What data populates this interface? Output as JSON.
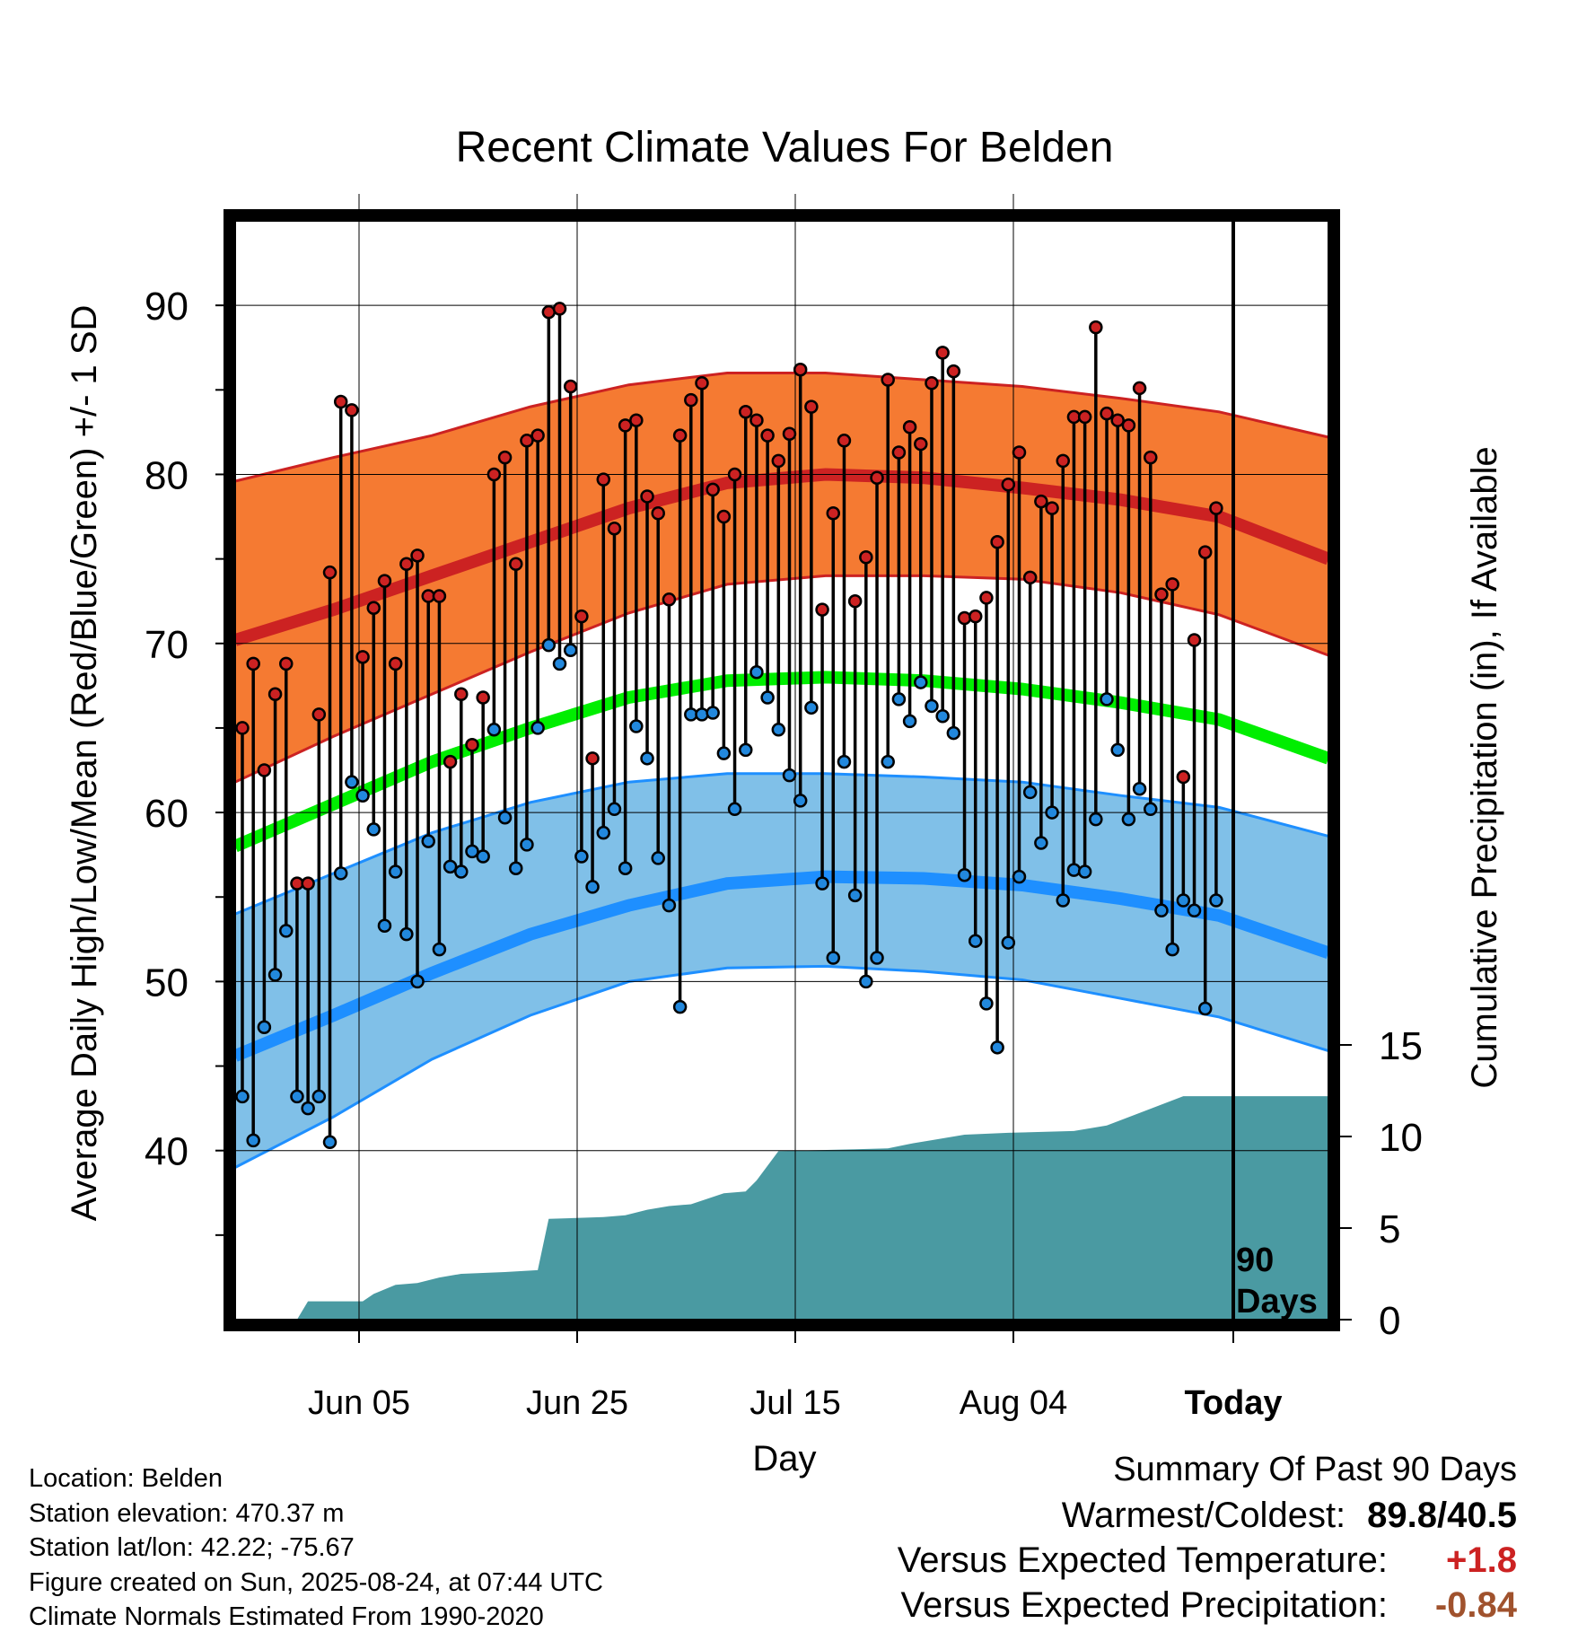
{
  "title": "Recent Climate Values For Belden",
  "labels": {
    "y_left": "Average Daily High/Low/Mean (Red/Blue/Green) +/- 1 SD",
    "y_right": "Cumulative Precipitation (in), If Available",
    "x": "Day",
    "period_note_line1": "90",
    "period_note_line2": "Days"
  },
  "colors": {
    "high_band": "#f57a32",
    "high_line": "#cc2222",
    "mean_line": "#00ee00",
    "low_band": "#80c0e8",
    "low_line": "#1e8fff",
    "precip_fill": "#4a9aa2",
    "high_dot": "#cc2222",
    "low_dot": "#2288dd",
    "temp_delta": "#cc2222",
    "precip_delta": "#a0522d"
  },
  "chart_data": {
    "type": "line",
    "x_ticks": [
      "Jun 05",
      "Jun 25",
      "Jul 15",
      "Aug 04",
      "Today"
    ],
    "y_left_ticks": [
      40,
      50,
      60,
      70,
      80,
      90
    ],
    "y_right_ticks": [
      0,
      5,
      10,
      15
    ],
    "y_left_range": [
      30,
      95
    ],
    "y_right_range": [
      0,
      60
    ],
    "days": 90,
    "daily_high": [
      65.0,
      68.8,
      62.5,
      67.0,
      68.8,
      55.8,
      55.8,
      65.8,
      74.2,
      84.3,
      83.8,
      69.2,
      72.1,
      73.7,
      68.8,
      74.7,
      75.2,
      72.8,
      72.8,
      63.0,
      67.0,
      64.0,
      66.8,
      80.0,
      81.0,
      74.7,
      82.0,
      82.3,
      89.6,
      89.8,
      85.2,
      71.6,
      63.2,
      79.7,
      76.8,
      82.9,
      83.2,
      78.7,
      77.7,
      72.6,
      82.3,
      84.4,
      85.4,
      79.1,
      77.5,
      80.0,
      83.7,
      83.2,
      82.3,
      80.8,
      82.4,
      86.2,
      84.0,
      72.0,
      77.7,
      82.0,
      72.5,
      75.1,
      79.8,
      85.6,
      81.3,
      82.8,
      81.8,
      85.4,
      87.2,
      86.1,
      71.5,
      71.6,
      72.7,
      76.0,
      79.4,
      81.3,
      73.9,
      78.4,
      78.0,
      80.8,
      83.4,
      83.4,
      88.7,
      83.6,
      83.2,
      82.9,
      85.1,
      81.0,
      72.9,
      73.5,
      62.1,
      70.2,
      75.4,
      78.0
    ],
    "daily_low": [
      43.2,
      40.6,
      47.3,
      50.4,
      53.0,
      43.2,
      42.5,
      43.2,
      40.5,
      56.4,
      61.8,
      61.0,
      59.0,
      53.3,
      56.5,
      52.8,
      50.0,
      58.3,
      51.9,
      56.8,
      56.5,
      57.7,
      57.4,
      64.9,
      59.7,
      56.7,
      58.1,
      65.0,
      69.9,
      68.8,
      69.6,
      57.4,
      55.6,
      58.8,
      60.2,
      56.7,
      65.1,
      63.2,
      57.3,
      54.5,
      48.5,
      65.8,
      65.8,
      65.9,
      63.5,
      60.2,
      63.7,
      68.3,
      66.8,
      64.9,
      62.2,
      60.7,
      66.2,
      55.8,
      51.4,
      63.0,
      55.1,
      50.0,
      51.4,
      63.0,
      66.7,
      65.4,
      67.7,
      66.3,
      65.7,
      64.7,
      56.3,
      52.4,
      48.7,
      46.1,
      52.3,
      56.2,
      61.2,
      58.2,
      60.0,
      54.8,
      56.6,
      56.5,
      59.6,
      66.7,
      63.7,
      59.6,
      61.4,
      60.2,
      54.2,
      51.9,
      54.8,
      54.2,
      48.4,
      54.8
    ],
    "normal_high_mean": [
      70.2,
      72.0,
      74.0,
      76.0,
      78.0,
      79.5,
      80.0,
      79.8,
      79.2,
      78.5,
      77.5,
      75.0
    ],
    "normal_high_upper": [
      79.6,
      81.0,
      82.3,
      84.0,
      85.3,
      86.0,
      86.0,
      85.6,
      85.2,
      84.5,
      83.7,
      82.2
    ],
    "normal_high_lower": [
      61.8,
      64.5,
      67.0,
      69.5,
      71.8,
      73.5,
      74.0,
      74.0,
      73.8,
      73.0,
      71.7,
      69.3
    ],
    "normal_mean": [
      58.0,
      60.5,
      63.0,
      65.0,
      66.8,
      67.8,
      68.0,
      67.8,
      67.3,
      66.5,
      65.5,
      63.2
    ],
    "normal_low_mean": [
      45.6,
      48.0,
      50.5,
      52.8,
      54.5,
      55.8,
      56.2,
      56.1,
      55.7,
      54.9,
      53.9,
      51.7
    ],
    "normal_low_upper": [
      54.0,
      56.4,
      58.8,
      60.6,
      61.8,
      62.3,
      62.3,
      62.1,
      61.8,
      61.0,
      60.3,
      58.6
    ],
    "normal_low_lower": [
      39.0,
      42.0,
      45.4,
      48.0,
      50.0,
      50.8,
      50.9,
      50.6,
      50.1,
      49.0,
      47.9,
      45.9
    ],
    "normal_x_fraction": [
      0,
      0.09,
      0.18,
      0.27,
      0.36,
      0.45,
      0.54,
      0.63,
      0.72,
      0.81,
      0.9,
      1.0
    ],
    "precip_steps": [
      [
        5,
        0.0
      ],
      [
        6,
        1.0
      ],
      [
        11,
        1.0
      ],
      [
        12,
        1.4
      ],
      [
        14,
        1.9
      ],
      [
        16,
        2.0
      ],
      [
        18,
        2.3
      ],
      [
        20,
        2.5
      ],
      [
        24,
        2.6
      ],
      [
        27,
        2.7
      ],
      [
        28,
        5.5
      ],
      [
        33,
        5.6
      ],
      [
        35,
        5.7
      ],
      [
        37,
        6.0
      ],
      [
        39,
        6.2
      ],
      [
        41,
        6.3
      ],
      [
        44,
        6.9
      ],
      [
        46,
        7.0
      ],
      [
        47,
        7.6
      ],
      [
        49,
        9.2
      ],
      [
        56,
        9.3
      ],
      [
        59,
        9.35
      ],
      [
        61,
        9.6
      ],
      [
        63,
        9.8
      ],
      [
        66,
        10.1
      ],
      [
        70,
        10.2
      ],
      [
        76,
        10.3
      ],
      [
        79,
        10.6
      ],
      [
        86,
        12.2
      ],
      [
        89,
        12.2
      ]
    ]
  },
  "info": {
    "location": "Location: Belden",
    "elevation": "Station elevation: 470.37 m",
    "latlon": "Station lat/lon: 42.22; -75.67",
    "created": "Figure created on Sun, 2025-08-24, at 07:44 UTC",
    "normals": "Climate Normals Estimated From 1990-2020"
  },
  "summary": {
    "title": "Summary Of Past 90 Days",
    "warm_cold_label": "Warmest/Coldest:",
    "warm_cold_value": "89.8/40.5",
    "temp_label": "Versus Expected Temperature:",
    "temp_value": "+1.8",
    "precip_label": "Versus Expected Precipitation:",
    "precip_value": "-0.84"
  }
}
